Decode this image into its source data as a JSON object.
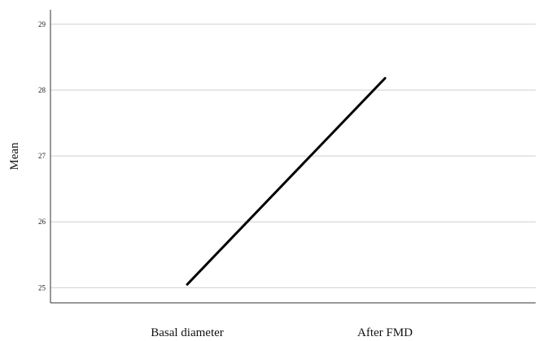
{
  "chart_data": {
    "type": "line",
    "title": "",
    "xlabel": "",
    "ylabel": "Mean",
    "categories": [
      "Basal diameter",
      "After FMD"
    ],
    "series": [
      {
        "values": [
          25.05,
          28.18
        ]
      }
    ],
    "ylim": [
      24.77,
      29.22
    ],
    "yticks": [
      25,
      26,
      27,
      28,
      29
    ],
    "grid": true,
    "legend": "none",
    "line_color": "#000000"
  }
}
